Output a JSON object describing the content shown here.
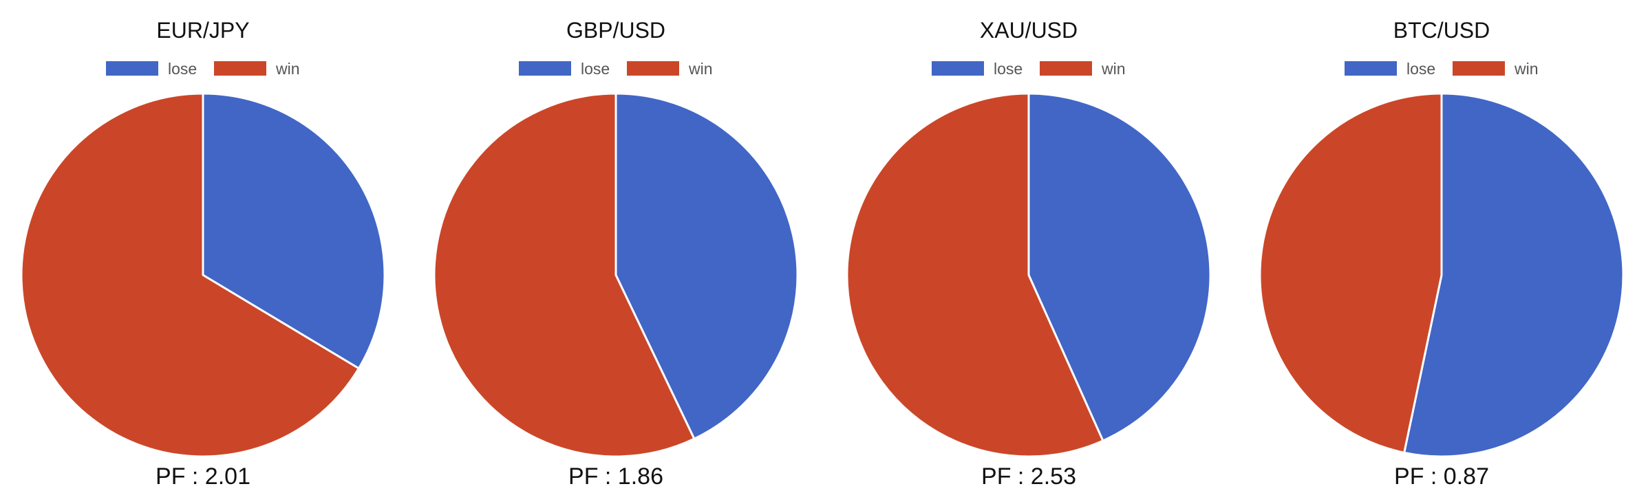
{
  "colors": {
    "lose": "#4166c6",
    "win": "#cb4628",
    "stroke": "#ffffff"
  },
  "chart_data": [
    {
      "type": "pie",
      "title": "EUR/JPY",
      "legend": {
        "position": "top",
        "entries": [
          "lose",
          "win"
        ]
      },
      "slices": [
        {
          "label": "lose",
          "value": 33.6
        },
        {
          "label": "win",
          "value": 66.4
        }
      ],
      "footer": "PF : 2.01"
    },
    {
      "type": "pie",
      "title": "GBP/USD",
      "legend": {
        "position": "top",
        "entries": [
          "lose",
          "win"
        ]
      },
      "slices": [
        {
          "label": "lose",
          "value": 42.9
        },
        {
          "label": "win",
          "value": 57.1
        }
      ],
      "footer": "PF : 1.86"
    },
    {
      "type": "pie",
      "title": "XAU/USD",
      "legend": {
        "position": "top",
        "entries": [
          "lose",
          "win"
        ]
      },
      "slices": [
        {
          "label": "lose",
          "value": 43.3
        },
        {
          "label": "win",
          "value": 56.7
        }
      ],
      "footer": "PF : 2.53"
    },
    {
      "type": "pie",
      "title": "BTC/USD",
      "legend": {
        "position": "top",
        "entries": [
          "lose",
          "win"
        ]
      },
      "slices": [
        {
          "label": "lose",
          "value": 53.3
        },
        {
          "label": "win",
          "value": 46.7
        }
      ],
      "footer": "PF : 0.87"
    }
  ]
}
